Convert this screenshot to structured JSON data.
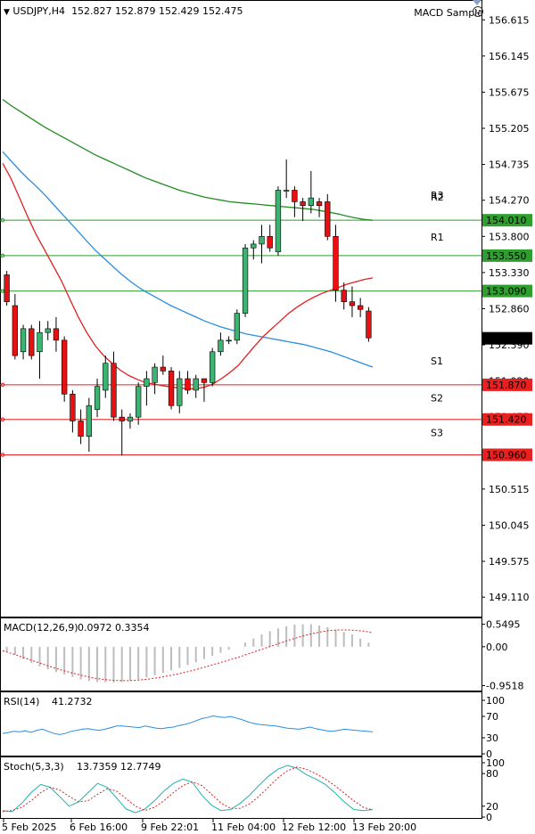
{
  "header": {
    "arrow": "▼",
    "symbol": "USDJPY,H4",
    "ohlc": "152.827 152.879 152.429 152.475",
    "expert": "MACD Sample",
    "expert_icon": "smiley-icon"
  },
  "colors": {
    "bull": "#3cb371",
    "bear": "#e81010",
    "sma_green": "#228b22",
    "sma_blue": "#2a8de0",
    "sma_red": "#e02020",
    "resistance": "#2e9e2e",
    "support": "#e82020",
    "macd_hist": "#bdbdbd",
    "macd_signal": "#e02020",
    "rsi": "#2a8de0",
    "stoch_main": "#20b2aa",
    "stoch_signal": "#e02020",
    "grid": "#000000"
  },
  "chart_data": [
    {
      "type": "candlestick",
      "title": "USDJPY,H4",
      "ylim": [
        148.88,
        156.85
      ],
      "y_ticks": [
        "156.615",
        "156.145",
        "155.675",
        "155.205",
        "154.735",
        "154.270",
        "153.800",
        "153.330",
        "152.860",
        "152.390",
        "151.920",
        "151.455",
        "150.985",
        "150.515",
        "150.045",
        "149.575",
        "149.110"
      ],
      "x_ticks": [
        "5 Feb 2025",
        "6 Feb 16:00",
        "9 Feb 22:01",
        "11 Feb 04:00",
        "12 Feb 12:00",
        "13 Feb 20:00"
      ],
      "current_price": "152.475",
      "levels": [
        {
          "name": "R3",
          "value": null,
          "price_label": "",
          "kind": "resistance"
        },
        {
          "name": "R2",
          "value": 154.01,
          "price_label": "154.010",
          "kind": "resistance"
        },
        {
          "name": "R1",
          "value": 153.55,
          "price_label": "153.550",
          "kind": "resistance"
        },
        {
          "name": "",
          "value": 153.09,
          "price_label": "153.090",
          "kind": "resistance"
        },
        {
          "name": "S1",
          "value": 151.87,
          "price_label": "151.870",
          "kind": "support"
        },
        {
          "name": "S2",
          "value": 151.42,
          "price_label": "151.420",
          "kind": "support"
        },
        {
          "name": "S3",
          "value": 150.96,
          "price_label": "150.960",
          "kind": "support"
        }
      ],
      "candles": [
        [
          153.3,
          153.35,
          152.9,
          152.95
        ],
        [
          152.9,
          153.05,
          152.2,
          152.25
        ],
        [
          152.3,
          152.65,
          152.2,
          152.6
        ],
        [
          152.6,
          152.65,
          152.2,
          152.25
        ],
        [
          152.3,
          152.7,
          151.95,
          152.55
        ],
        [
          152.55,
          152.7,
          152.45,
          152.6
        ],
        [
          152.6,
          152.75,
          152.3,
          152.45
        ],
        [
          152.45,
          152.5,
          151.65,
          151.75
        ],
        [
          151.75,
          151.8,
          151.25,
          151.4
        ],
        [
          151.4,
          151.55,
          151.1,
          151.2
        ],
        [
          151.2,
          151.7,
          151.0,
          151.6
        ],
        [
          151.55,
          151.95,
          151.45,
          151.85
        ],
        [
          151.8,
          152.25,
          151.7,
          152.15
        ],
        [
          152.15,
          152.3,
          151.4,
          151.45
        ],
        [
          151.45,
          151.55,
          150.95,
          151.4
        ],
        [
          151.4,
          151.5,
          151.3,
          151.45
        ],
        [
          151.45,
          151.9,
          151.35,
          151.85
        ],
        [
          151.85,
          152.05,
          151.6,
          151.95
        ],
        [
          151.9,
          152.15,
          151.75,
          152.1
        ],
        [
          152.1,
          152.25,
          152.0,
          152.05
        ],
        [
          152.05,
          152.1,
          151.55,
          151.6
        ],
        [
          151.6,
          152.05,
          151.5,
          151.95
        ],
        [
          151.95,
          152.05,
          151.75,
          151.8
        ],
        [
          151.8,
          152.0,
          151.7,
          151.95
        ],
        [
          151.95,
          151.95,
          151.65,
          151.9
        ],
        [
          151.9,
          152.35,
          151.85,
          152.3
        ],
        [
          152.3,
          152.55,
          152.25,
          152.45
        ],
        [
          152.45,
          152.5,
          152.4,
          152.45
        ],
        [
          152.45,
          152.85,
          152.4,
          152.8
        ],
        [
          152.8,
          153.7,
          152.75,
          153.65
        ],
        [
          153.65,
          153.75,
          153.5,
          153.7
        ],
        [
          153.7,
          153.95,
          153.45,
          153.8
        ],
        [
          153.8,
          153.95,
          153.6,
          153.65
        ],
        [
          153.6,
          154.45,
          153.55,
          154.4
        ],
        [
          154.4,
          154.8,
          154.3,
          154.4
        ],
        [
          154.4,
          154.45,
          154.05,
          154.25
        ],
        [
          154.25,
          154.3,
          154.0,
          154.2
        ],
        [
          154.2,
          154.65,
          154.1,
          154.3
        ],
        [
          154.25,
          154.3,
          154.05,
          154.2
        ],
        [
          154.25,
          154.35,
          153.75,
          153.8
        ],
        [
          153.8,
          153.95,
          152.95,
          153.1
        ],
        [
          153.1,
          153.2,
          152.85,
          152.95
        ],
        [
          152.95,
          153.15,
          152.75,
          152.9
        ],
        [
          152.9,
          153.0,
          152.75,
          152.85
        ],
        [
          152.83,
          152.88,
          152.43,
          152.48
        ]
      ],
      "sma_green": [
        155.58,
        155.5,
        155.43,
        155.36,
        155.29,
        155.22,
        155.16,
        155.1,
        155.04,
        154.98,
        154.92,
        154.86,
        154.81,
        154.76,
        154.71,
        154.66,
        154.61,
        154.56,
        154.52,
        154.48,
        154.44,
        154.4,
        154.37,
        154.34,
        154.31,
        154.29,
        154.27,
        154.25,
        154.24,
        154.23,
        154.22,
        154.21,
        154.2,
        154.19,
        154.18,
        154.17,
        154.16,
        154.15,
        154.13,
        154.11,
        154.09,
        154.06,
        154.04,
        154.02,
        154.01
      ],
      "sma_blue": [
        154.9,
        154.78,
        154.66,
        154.55,
        154.45,
        154.34,
        154.22,
        154.1,
        153.98,
        153.86,
        153.74,
        153.62,
        153.52,
        153.42,
        153.32,
        153.23,
        153.15,
        153.08,
        153.02,
        152.96,
        152.9,
        152.85,
        152.8,
        152.75,
        152.7,
        152.66,
        152.62,
        152.59,
        152.56,
        152.53,
        152.51,
        152.49,
        152.47,
        152.45,
        152.43,
        152.41,
        152.39,
        152.36,
        152.33,
        152.3,
        152.26,
        152.22,
        152.18,
        152.14,
        152.1
      ],
      "sma_red": [
        154.75,
        154.55,
        154.3,
        154.05,
        153.82,
        153.62,
        153.42,
        153.22,
        152.98,
        152.75,
        152.55,
        152.38,
        152.25,
        152.15,
        152.06,
        151.99,
        151.94,
        151.9,
        151.88,
        151.86,
        151.84,
        151.83,
        151.82,
        151.82,
        151.84,
        151.88,
        151.95,
        152.03,
        152.12,
        152.25,
        152.38,
        152.5,
        152.6,
        152.7,
        152.8,
        152.88,
        152.95,
        153.01,
        153.06,
        153.1,
        153.14,
        153.18,
        153.21,
        153.24,
        153.26
      ]
    },
    {
      "type": "bar",
      "title": "MACD(12,26,9)",
      "values_label": "0.0972 0.3354",
      "ylim": [
        -1.05,
        0.65
      ],
      "y_ticks": [
        "0.5495",
        "0.00",
        "-0.9518"
      ],
      "histogram": [
        -0.12,
        -0.2,
        -0.3,
        -0.4,
        -0.48,
        -0.55,
        -0.62,
        -0.68,
        -0.74,
        -0.8,
        -0.84,
        -0.86,
        -0.87,
        -0.88,
        -0.86,
        -0.83,
        -0.8,
        -0.75,
        -0.7,
        -0.64,
        -0.58,
        -0.52,
        -0.45,
        -0.38,
        -0.3,
        -0.22,
        -0.15,
        -0.07,
        0.0,
        0.1,
        0.2,
        0.3,
        0.38,
        0.45,
        0.5,
        0.54,
        0.55,
        0.55,
        0.52,
        0.48,
        0.42,
        0.36,
        0.3,
        0.2,
        0.1
      ],
      "signal": [
        -0.1,
        -0.16,
        -0.23,
        -0.3,
        -0.37,
        -0.44,
        -0.51,
        -0.57,
        -0.63,
        -0.68,
        -0.73,
        -0.77,
        -0.8,
        -0.82,
        -0.83,
        -0.83,
        -0.82,
        -0.8,
        -0.77,
        -0.74,
        -0.7,
        -0.66,
        -0.61,
        -0.56,
        -0.5,
        -0.44,
        -0.38,
        -0.32,
        -0.26,
        -0.19,
        -0.12,
        -0.05,
        0.02,
        0.09,
        0.16,
        0.22,
        0.28,
        0.33,
        0.37,
        0.4,
        0.41,
        0.41,
        0.4,
        0.38,
        0.34
      ]
    },
    {
      "type": "line",
      "title": "RSI(14)",
      "values_label": "41.2732",
      "ylim": [
        0,
        100
      ],
      "y_ticks": [
        "100",
        "70",
        "30",
        "0"
      ],
      "values": [
        38,
        40,
        42,
        41,
        43,
        40,
        44,
        46,
        42,
        38,
        36,
        38,
        42,
        44,
        46,
        47,
        45,
        44,
        46,
        49,
        52,
        52,
        51,
        50,
        49,
        52,
        50,
        48,
        47,
        49,
        50,
        53,
        55,
        58,
        62,
        66,
        68,
        71,
        69,
        68,
        70,
        67,
        64,
        60,
        57,
        55,
        54,
        53,
        52,
        50,
        48,
        47,
        46,
        48,
        50,
        47,
        45,
        43,
        42,
        44,
        46,
        45,
        44,
        43,
        42,
        41
      ]
    },
    {
      "type": "line",
      "title": "Stoch(5,3,3)",
      "values_label": "13.7359 12.7749",
      "ylim": [
        0,
        100
      ],
      "y_ticks": [
        "100",
        "80",
        "20",
        "0"
      ],
      "main": [
        12,
        10,
        25,
        45,
        60,
        55,
        38,
        20,
        28,
        45,
        62,
        55,
        35,
        15,
        8,
        15,
        30,
        48,
        62,
        70,
        64,
        40,
        22,
        12,
        14,
        25,
        40,
        58,
        75,
        88,
        95,
        90,
        78,
        70,
        60,
        45,
        28,
        14,
        12,
        14
      ],
      "signal": [
        10,
        12,
        18,
        30,
        45,
        55,
        50,
        38,
        28,
        30,
        42,
        52,
        48,
        34,
        20,
        12,
        18,
        30,
        45,
        58,
        65,
        58,
        42,
        26,
        16,
        16,
        24,
        38,
        55,
        72,
        85,
        92,
        88,
        80,
        70,
        58,
        44,
        30,
        18,
        13
      ]
    }
  ]
}
